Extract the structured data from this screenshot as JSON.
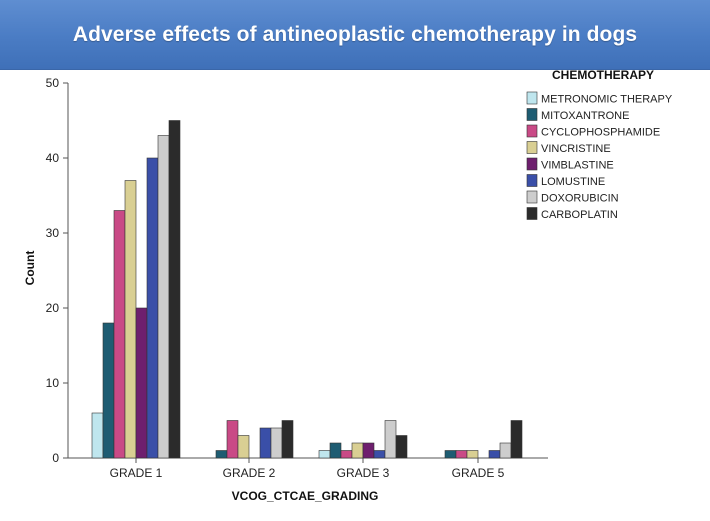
{
  "chart_data": {
    "type": "bar",
    "title": "Adverse effects of antineoplastic chemotherapy in dogs",
    "xlabel": "VCOG_CTCAE_GRADING",
    "ylabel": "Count",
    "ylim": [
      0,
      50
    ],
    "yticks": [
      0,
      10,
      20,
      30,
      40,
      50
    ],
    "categories": [
      "GRADE 1",
      "GRADE 2",
      "GRADE 3",
      "GRADE 5"
    ],
    "legend_title": "CHEMOTHERAPY",
    "legend_position": "top-right",
    "grid": false,
    "series": [
      {
        "name": "METRONOMIC THERAPY",
        "color": "#bfe6ee",
        "values": [
          6,
          0,
          1,
          0
        ]
      },
      {
        "name": "MITOXANTRONE",
        "color": "#1e5c72",
        "values": [
          18,
          1,
          2,
          1
        ]
      },
      {
        "name": "CYCLOPHOSPHAMIDE",
        "color": "#c94a86",
        "values": [
          33,
          5,
          1,
          1
        ]
      },
      {
        "name": "VINCRISTINE",
        "color": "#d9cf93",
        "values": [
          37,
          3,
          2,
          1
        ]
      },
      {
        "name": "VIMBLASTINE",
        "color": "#6e1f6e",
        "values": [
          20,
          0,
          2,
          0
        ]
      },
      {
        "name": "LOMUSTINE",
        "color": "#3a4fa8",
        "values": [
          40,
          4,
          1,
          1
        ]
      },
      {
        "name": "DOXORUBICIN",
        "color": "#cdcdcd",
        "values": [
          43,
          4,
          5,
          2
        ]
      },
      {
        "name": "CARBOPLATIN",
        "color": "#2b2b2b",
        "values": [
          45,
          5,
          3,
          5
        ]
      }
    ]
  }
}
